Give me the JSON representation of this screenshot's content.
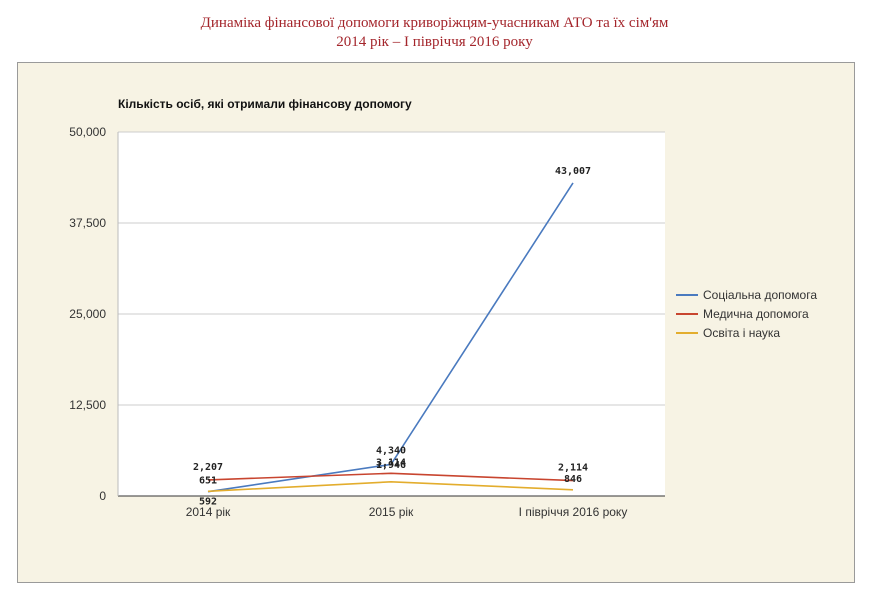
{
  "header": {
    "title_line1": "Динаміка фінансової допомоги криворіжцям-учасникам АТО та їх сім'ям",
    "title_line2": "2014 рік – І півріччя 2016 року"
  },
  "chart_data": {
    "type": "line",
    "title": "Кількість осіб, які отримали фінансову допомогу",
    "categories": [
      "2014 рік",
      "2015 рік",
      "І півріччя 2016 року"
    ],
    "y_ticks": [
      "0",
      "12,500",
      "25,000",
      "37,500",
      "50,000"
    ],
    "ylim": [
      0,
      50000
    ],
    "grid": true,
    "legend_position": "right",
    "series": [
      {
        "name": "Соціальна допомога",
        "color": "#4a7abf",
        "values": [
          592,
          4340,
          43007
        ],
        "labels": [
          "592",
          "4,340",
          "43,007"
        ]
      },
      {
        "name": "Медична допомога",
        "color": "#c8452f",
        "values": [
          2207,
          3114,
          2114
        ],
        "labels": [
          "2,207",
          "3,114",
          "2,114"
        ]
      },
      {
        "name": "Освіта і наука",
        "color": "#e3ad2d",
        "values": [
          651,
          1946,
          846
        ],
        "labels": [
          "651",
          "1,946",
          "846"
        ]
      }
    ]
  }
}
